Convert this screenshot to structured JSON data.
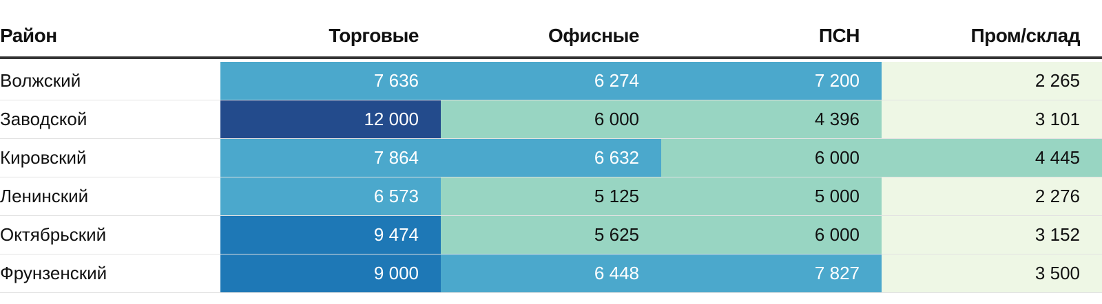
{
  "chart_data": {
    "type": "table",
    "columns": [
      "Район",
      "Торговые",
      "Офисные",
      "ПСН",
      "Пром/склад"
    ],
    "rows": [
      {
        "district": "Волжский",
        "values": [
          7636,
          6274,
          7200,
          2265
        ],
        "labels": [
          "7 636",
          "6 274",
          "7 200",
          "2 265"
        ]
      },
      {
        "district": "Заводской",
        "values": [
          12000,
          6000,
          4396,
          3101
        ],
        "labels": [
          "12 000",
          "6 000",
          "4 396",
          "3 101"
        ]
      },
      {
        "district": "Кировский",
        "values": [
          7864,
          6632,
          6000,
          4445
        ],
        "labels": [
          "7 864",
          "6 632",
          "6 000",
          "4 445"
        ]
      },
      {
        "district": "Ленинский",
        "values": [
          6573,
          5125,
          5000,
          2276
        ],
        "labels": [
          "6 573",
          "5 125",
          "5 000",
          "2 276"
        ]
      },
      {
        "district": "Октябрьский",
        "values": [
          9474,
          5625,
          6000,
          3152
        ],
        "labels": [
          "9 474",
          "5 625",
          "6 000",
          "3 152"
        ]
      },
      {
        "district": "Фрунзенский",
        "values": [
          9000,
          6448,
          7827,
          3500
        ],
        "labels": [
          "9 000",
          "6 448",
          "7 827",
          "3 500"
        ]
      }
    ],
    "color_scale": [
      {
        "min": 0,
        "max": 4000,
        "color": "#eef7e5",
        "text_color": "#111111"
      },
      {
        "min": 4000,
        "max": 6200,
        "color": "#98d5c2",
        "text_color": "#111111"
      },
      {
        "min": 6200,
        "max": 9000,
        "color": "#4ba8cc",
        "text_color": "#ffffff"
      },
      {
        "min": 9000,
        "max": 11000,
        "color": "#1e78b6",
        "text_color": "#ffffff"
      },
      {
        "min": 11000,
        "max": 99999,
        "color": "#234b8c",
        "text_color": "#ffffff"
      }
    ]
  }
}
